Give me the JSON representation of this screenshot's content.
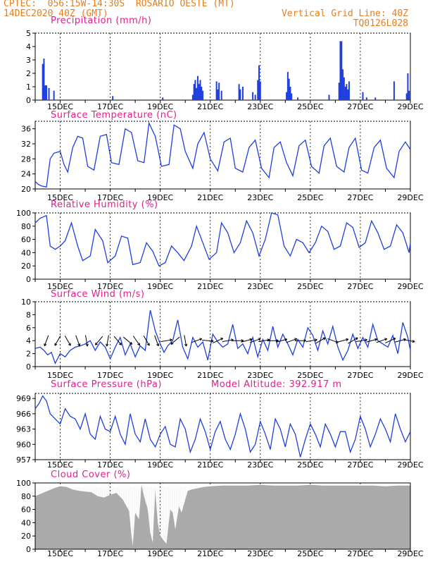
{
  "header": {
    "line1": "CPTEC:  056:15W-14:30S  ROSARIO OESTE (MT)",
    "line2": "14DEC2020 40Z (GMT)",
    "grid_note": "Vertical Grid Line: 40Z",
    "code": "TQ0126L028"
  },
  "colors": {
    "header": "#e67e1e",
    "title": "#e0218a",
    "series": "#1f3fe0",
    "cloud": "#a9a9a9",
    "arrow": "#000000"
  },
  "x_axis": {
    "start_day": 14,
    "end_day": 29,
    "ticks": [
      15,
      17,
      19,
      21,
      23,
      25,
      27,
      29
    ],
    "tick_labels": [
      "15DEC",
      "17DEC",
      "19DEC",
      "21DEC",
      "23DEC",
      "25DEC",
      "27DEC",
      "29DEC"
    ]
  },
  "chart_data": [
    {
      "id": "precip",
      "type": "bar",
      "title": "Precipitation (mm/h)",
      "ylim": [
        0,
        5
      ],
      "yticks": [
        "0",
        "1",
        "2",
        "3",
        "4",
        "5"
      ],
      "x": [
        14.3,
        14.35,
        14.4,
        14.45,
        14.55,
        14.75,
        17.1,
        19.1,
        20.3,
        20.35,
        20.4,
        20.45,
        20.5,
        20.55,
        20.6,
        20.65,
        20.7,
        21.25,
        21.3,
        21.35,
        21.45,
        22.15,
        22.2,
        22.3,
        22.7,
        22.8,
        22.9,
        22.95,
        23.0,
        24.05,
        24.1,
        24.15,
        24.2,
        24.25,
        24.5,
        25.75,
        26.15,
        26.2,
        26.25,
        26.3,
        26.35,
        26.4,
        26.45,
        26.5,
        26.55,
        27.1,
        27.25,
        27.6,
        28.35,
        28.85,
        28.9,
        28.95
      ],
      "values": [
        2.7,
        3.1,
        1.1,
        1.1,
        0.9,
        0.7,
        0.3,
        0.2,
        0.4,
        1.2,
        1.5,
        0.9,
        1.8,
        1.2,
        1.5,
        1.0,
        0.7,
        1.4,
        0.8,
        1.3,
        0.7,
        1.2,
        0.8,
        1.0,
        0.6,
        0.4,
        1.5,
        2.6,
        1.4,
        0.6,
        2.1,
        1.6,
        1.0,
        0.5,
        0.2,
        0.4,
        1.3,
        4.4,
        4.4,
        2.3,
        1.7,
        1.0,
        1.2,
        0.8,
        1.4,
        0.6,
        0.2,
        0.2,
        1.4,
        0.5,
        2.0,
        0.7
      ]
    },
    {
      "id": "temp",
      "type": "line",
      "title": "Surface Temperature (nC)",
      "ylim": [
        20,
        38
      ],
      "yticks": [
        "20",
        "24",
        "28",
        "32",
        "36"
      ],
      "x": [
        14.0,
        14.1,
        14.25,
        14.45,
        14.6,
        14.75,
        15.0,
        15.15,
        15.3,
        15.5,
        15.7,
        15.9,
        16.1,
        16.35,
        16.6,
        16.85,
        17.05,
        17.35,
        17.6,
        17.85,
        18.1,
        18.35,
        18.55,
        18.8,
        19.05,
        19.35,
        19.55,
        19.8,
        20.0,
        20.3,
        20.5,
        20.75,
        21.0,
        21.3,
        21.55,
        21.8,
        22.0,
        22.3,
        22.55,
        22.8,
        23.05,
        23.35,
        23.55,
        23.8,
        24.05,
        24.3,
        24.55,
        24.8,
        25.05,
        25.35,
        25.55,
        25.8,
        26.05,
        26.35,
        26.55,
        26.8,
        27.05,
        27.3,
        27.55,
        27.8,
        28.05,
        28.35,
        28.55,
        28.8,
        29.0
      ],
      "values": [
        22,
        21.3,
        20.8,
        20.5,
        28,
        29.5,
        30,
        26.5,
        24.5,
        31,
        34,
        33.5,
        26,
        25,
        34,
        34.5,
        27,
        26.5,
        36,
        35,
        27.5,
        27,
        37.5,
        34,
        26,
        26.5,
        37,
        36,
        30,
        25.5,
        32,
        35,
        28,
        24.8,
        32.5,
        33.5,
        25.5,
        24.5,
        31,
        33,
        25.5,
        23,
        31,
        32.5,
        27,
        23.5,
        31.5,
        33,
        26,
        24.2,
        31.5,
        33.5,
        26,
        24.5,
        31,
        33.5,
        25,
        24.2,
        31,
        33,
        25.5,
        23,
        30,
        32.5,
        30.5
      ]
    },
    {
      "id": "rh",
      "type": "line",
      "title": "Relative Humidity (%)",
      "ylim": [
        0,
        100
      ],
      "yticks": [
        "0",
        "20",
        "40",
        "60",
        "80",
        "100"
      ],
      "x": [
        14.0,
        14.2,
        14.45,
        14.6,
        14.8,
        15.0,
        15.2,
        15.45,
        15.7,
        15.9,
        16.2,
        16.4,
        16.7,
        16.9,
        17.2,
        17.45,
        17.7,
        17.9,
        18.2,
        18.45,
        18.7,
        18.95,
        19.2,
        19.45,
        19.7,
        19.95,
        20.25,
        20.45,
        20.7,
        20.95,
        21.25,
        21.45,
        21.7,
        21.95,
        22.2,
        22.45,
        22.7,
        22.95,
        23.2,
        23.45,
        23.7,
        23.95,
        24.2,
        24.45,
        24.7,
        24.95,
        25.2,
        25.45,
        25.7,
        25.95,
        26.2,
        26.45,
        26.7,
        26.95,
        27.2,
        27.45,
        27.7,
        27.95,
        28.2,
        28.45,
        28.7,
        28.95,
        29.0
      ],
      "values": [
        85,
        92,
        96,
        50,
        45,
        50,
        58,
        85,
        50,
        28,
        35,
        75,
        58,
        25,
        35,
        65,
        62,
        22,
        25,
        55,
        42,
        20,
        25,
        50,
        40,
        28,
        50,
        80,
        55,
        30,
        40,
        85,
        70,
        40,
        55,
        88,
        70,
        35,
        60,
        100,
        97,
        50,
        35,
        60,
        55,
        40,
        55,
        80,
        72,
        45,
        50,
        85,
        78,
        48,
        55,
        88,
        70,
        45,
        50,
        82,
        70,
        40,
        55
      ]
    },
    {
      "id": "wind",
      "type": "line",
      "title": "Surface Wind (m/s)",
      "ylim": [
        0,
        10
      ],
      "yticks": [
        "0",
        "2",
        "4",
        "6",
        "8",
        "10"
      ],
      "x": [
        14.0,
        14.2,
        14.35,
        14.5,
        14.65,
        14.8,
        15.0,
        15.2,
        15.4,
        15.6,
        15.8,
        16.0,
        16.2,
        16.4,
        16.6,
        16.8,
        17.0,
        17.2,
        17.4,
        17.6,
        17.8,
        18.0,
        18.2,
        18.4,
        18.6,
        18.8,
        19.0,
        19.15,
        19.3,
        19.5,
        19.7,
        19.9,
        20.1,
        20.3,
        20.5,
        20.7,
        20.9,
        21.1,
        21.3,
        21.5,
        21.7,
        21.9,
        22.1,
        22.3,
        22.5,
        22.7,
        22.9,
        23.1,
        23.3,
        23.5,
        23.7,
        23.9,
        24.1,
        24.3,
        24.5,
        24.7,
        24.9,
        25.1,
        25.3,
        25.5,
        25.7,
        25.9,
        26.1,
        26.3,
        26.5,
        26.7,
        26.9,
        27.1,
        27.3,
        27.5,
        27.7,
        27.9,
        28.1,
        28.3,
        28.5,
        28.7,
        28.9,
        29.0
      ],
      "values": [
        2.8,
        3.0,
        2.5,
        1.8,
        2.2,
        0.5,
        2.0,
        1.5,
        2.5,
        3.0,
        3.2,
        3.5,
        4.0,
        2.5,
        3.8,
        3.0,
        1.2,
        3.0,
        4.5,
        1.8,
        3.5,
        1.5,
        3.2,
        2.5,
        8.7,
        5.5,
        3.5,
        2.2,
        3.2,
        4.0,
        7.2,
        3.0,
        1.2,
        4.5,
        3.0,
        3.8,
        1.0,
        5.0,
        3.8,
        3.0,
        3.5,
        6.5,
        2.8,
        3.5,
        2.0,
        4.5,
        1.5,
        4.2,
        2.5,
        6.2,
        3.0,
        5.0,
        3.5,
        1.8,
        4.2,
        3.0,
        6.0,
        4.8,
        2.5,
        5.5,
        3.5,
        6.2,
        3.0,
        1.0,
        2.5,
        5.0,
        2.8,
        4.5,
        3.0,
        6.5,
        4.0,
        3.5,
        3.0,
        4.8,
        2.0,
        6.8,
        4.5,
        2.5
      ]
    },
    {
      "id": "pres",
      "type": "line",
      "title": "Surface Pressure (hPa)",
      "annotation": "Model Altitude: 392.917 m",
      "ylim": [
        957,
        970
      ],
      "yticks": [
        "957",
        "960",
        "963",
        "966",
        "969"
      ],
      "x": [
        14.0,
        14.15,
        14.3,
        14.45,
        14.6,
        14.8,
        15.0,
        15.2,
        15.4,
        15.6,
        15.8,
        16.0,
        16.2,
        16.4,
        16.6,
        16.8,
        17.0,
        17.2,
        17.4,
        17.6,
        17.8,
        18.0,
        18.2,
        18.4,
        18.6,
        18.8,
        19.0,
        19.2,
        19.4,
        19.6,
        19.8,
        20.0,
        20.2,
        20.4,
        20.6,
        20.8,
        21.0,
        21.2,
        21.4,
        21.6,
        21.8,
        22.0,
        22.2,
        22.4,
        22.6,
        22.8,
        23.0,
        23.2,
        23.4,
        23.6,
        23.8,
        24.0,
        24.2,
        24.4,
        24.6,
        24.8,
        25.0,
        25.2,
        25.4,
        25.6,
        25.8,
        26.0,
        26.2,
        26.4,
        26.6,
        26.8,
        27.0,
        27.2,
        27.4,
        27.6,
        27.8,
        28.0,
        28.2,
        28.4,
        28.6,
        28.8,
        29.0
      ],
      "values": [
        967,
        968,
        969.5,
        968.5,
        966,
        965,
        964,
        967,
        965.5,
        965,
        963,
        966,
        962,
        961,
        965.5,
        963,
        962.5,
        965.5,
        962,
        960,
        966,
        962,
        960.5,
        965,
        961,
        959.5,
        962,
        963.5,
        960,
        959.5,
        965,
        963,
        958.5,
        961,
        965,
        962.5,
        959,
        962.5,
        964.5,
        961,
        959,
        962,
        966,
        963,
        958.5,
        960,
        964.5,
        962,
        959,
        965,
        963,
        959.5,
        964,
        962,
        957.5,
        961,
        964,
        962,
        959.5,
        964,
        962,
        959.5,
        962.5,
        962.5,
        958.5,
        961,
        965.5,
        963,
        959.5,
        962,
        965,
        963,
        960.5,
        966,
        963,
        960.5,
        962.5
      ]
    },
    {
      "id": "cloud",
      "type": "area",
      "title": "Cloud Cover (%)",
      "ylim": [
        0,
        100
      ],
      "yticks": [
        "0",
        "20",
        "40",
        "60",
        "80",
        "100"
      ],
      "x": [
        14.0,
        14.25,
        14.5,
        14.75,
        15.0,
        15.25,
        15.5,
        15.75,
        16.0,
        16.25,
        16.5,
        16.75,
        17.0,
        17.25,
        17.5,
        17.75,
        17.85,
        17.9,
        18.0,
        18.15,
        18.25,
        18.35,
        18.5,
        18.6,
        18.7,
        18.8,
        18.9,
        19.0,
        19.1,
        19.25,
        19.4,
        19.5,
        19.6,
        19.75,
        19.85,
        20.0,
        20.1,
        20.25,
        20.5,
        20.75,
        21.0,
        21.5,
        22.0,
        22.5,
        23.0,
        23.5,
        24.0,
        24.5,
        25.0,
        25.5,
        26.0,
        26.5,
        27.0,
        27.5,
        28.0,
        28.5,
        29.0
      ],
      "values": [
        80,
        84,
        88,
        92,
        95,
        94,
        90,
        88,
        87,
        86,
        80,
        78,
        82,
        85,
        75,
        58,
        20,
        5,
        55,
        45,
        97,
        80,
        60,
        25,
        10,
        90,
        40,
        20,
        15,
        8,
        60,
        55,
        30,
        65,
        55,
        75,
        88,
        90,
        92,
        94,
        95,
        96,
        96,
        96,
        97,
        96,
        96,
        96,
        97,
        96,
        96,
        96,
        96,
        96,
        95,
        96,
        96
      ]
    }
  ],
  "wind_arrows": {
    "x": [
      14.45,
      14.9,
      15.3,
      15.7,
      16.05,
      16.55,
      16.9,
      17.3,
      17.7,
      18.05,
      18.45,
      18.85,
      19.25,
      19.6,
      20.0,
      20.45,
      20.9,
      21.3,
      21.7,
      22.1,
      22.45,
      22.8,
      23.15,
      23.5,
      23.85,
      24.25,
      24.6,
      25.05,
      25.4,
      25.9,
      26.3,
      26.7,
      27.05,
      27.45,
      27.85,
      28.2,
      28.6,
      28.95
    ],
    "angle_deg": [
      200,
      210,
      150,
      160,
      170,
      220,
      190,
      140,
      130,
      145,
      150,
      160,
      80,
      230,
      170,
      70,
      95,
      65,
      80,
      90,
      75,
      70,
      80,
      90,
      75,
      70,
      90,
      80,
      60,
      110,
      75,
      60,
      80,
      75,
      70,
      65,
      75,
      100
    ]
  }
}
